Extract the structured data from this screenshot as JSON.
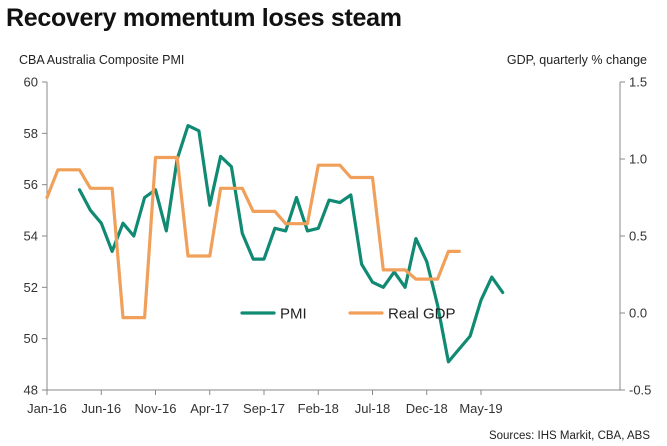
{
  "title": "Recovery momentum loses steam",
  "left_axis_title": "CBA Australia Composite PMI",
  "right_axis_title": "GDP, quarterly % change",
  "source": "Sources: IHS Markit, CBA, ABS",
  "colors": {
    "pmi": "#118a73",
    "gdp": "#f0a05a",
    "axis": "#888888"
  },
  "chart_data": {
    "type": "line",
    "x_ticks": [
      "Jan-16",
      "Jun-16",
      "Nov-16",
      "Apr-17",
      "Sep-17",
      "Feb-18",
      "Jul-18",
      "Dec-18",
      "May-19"
    ],
    "y_left": {
      "min": 48,
      "max": 60,
      "ticks": [
        "48",
        "50",
        "52",
        "54",
        "56",
        "58",
        "60"
      ]
    },
    "y_right": {
      "min": -0.5,
      "max": 1.5,
      "ticks": [
        "-0.5",
        "0.0",
        "0.5",
        "1.0",
        "1.5"
      ]
    },
    "legend": [
      "PMI",
      "Real GDP"
    ],
    "legend_position": "center-bottom",
    "series": [
      {
        "name": "PMI",
        "axis": "left",
        "x": [
          "2016-04",
          "2016-05",
          "2016-06",
          "2016-07",
          "2016-08",
          "2016-09",
          "2016-10",
          "2016-11",
          "2016-12",
          "2017-01",
          "2017-02",
          "2017-03",
          "2017-04",
          "2017-05",
          "2017-06",
          "2017-07",
          "2017-08",
          "2017-09",
          "2017-10",
          "2017-11",
          "2017-12",
          "2018-01",
          "2018-02",
          "2018-03",
          "2018-04",
          "2018-05",
          "2018-06",
          "2018-07",
          "2018-08",
          "2018-09",
          "2018-10",
          "2018-11",
          "2018-12",
          "2019-01",
          "2019-02",
          "2019-03",
          "2019-04",
          "2019-05",
          "2019-06",
          "2019-07"
        ],
        "values": [
          55.8,
          55.0,
          54.5,
          53.4,
          54.5,
          54.0,
          55.5,
          55.8,
          54.2,
          57.0,
          58.3,
          58.1,
          55.2,
          57.1,
          56.7,
          54.1,
          53.1,
          53.1,
          54.3,
          54.2,
          55.5,
          54.2,
          54.3,
          55.4,
          55.3,
          55.6,
          52.9,
          52.2,
          52.0,
          52.6,
          52.0,
          53.9,
          53.0,
          51.3,
          49.1,
          49.6,
          50.1,
          51.5,
          52.4,
          51.8
        ]
      },
      {
        "name": "Real GDP",
        "axis": "right",
        "x": [
          "2016-01",
          "2016-02",
          "2016-03",
          "2016-04",
          "2016-05",
          "2016-06",
          "2016-07",
          "2016-08",
          "2016-09",
          "2016-10",
          "2016-11",
          "2016-12",
          "2017-01",
          "2017-02",
          "2017-03",
          "2017-04",
          "2017-05",
          "2017-06",
          "2017-07",
          "2017-08",
          "2017-09",
          "2017-10",
          "2017-11",
          "2017-12",
          "2018-01",
          "2018-02",
          "2018-03",
          "2018-04",
          "2018-05",
          "2018-06",
          "2018-07",
          "2018-08",
          "2018-09",
          "2018-10",
          "2018-11",
          "2018-12",
          "2019-01",
          "2019-02",
          "2019-03"
        ],
        "values": [
          0.75,
          0.93,
          0.93,
          0.93,
          0.81,
          0.81,
          0.81,
          -0.03,
          -0.03,
          -0.03,
          1.01,
          1.01,
          1.01,
          0.37,
          0.37,
          0.37,
          0.81,
          0.81,
          0.81,
          0.66,
          0.66,
          0.66,
          0.58,
          0.58,
          0.58,
          0.96,
          0.96,
          0.96,
          0.88,
          0.88,
          0.88,
          0.28,
          0.28,
          0.28,
          0.22,
          0.22,
          0.22,
          0.4,
          0.4
        ]
      }
    ]
  }
}
